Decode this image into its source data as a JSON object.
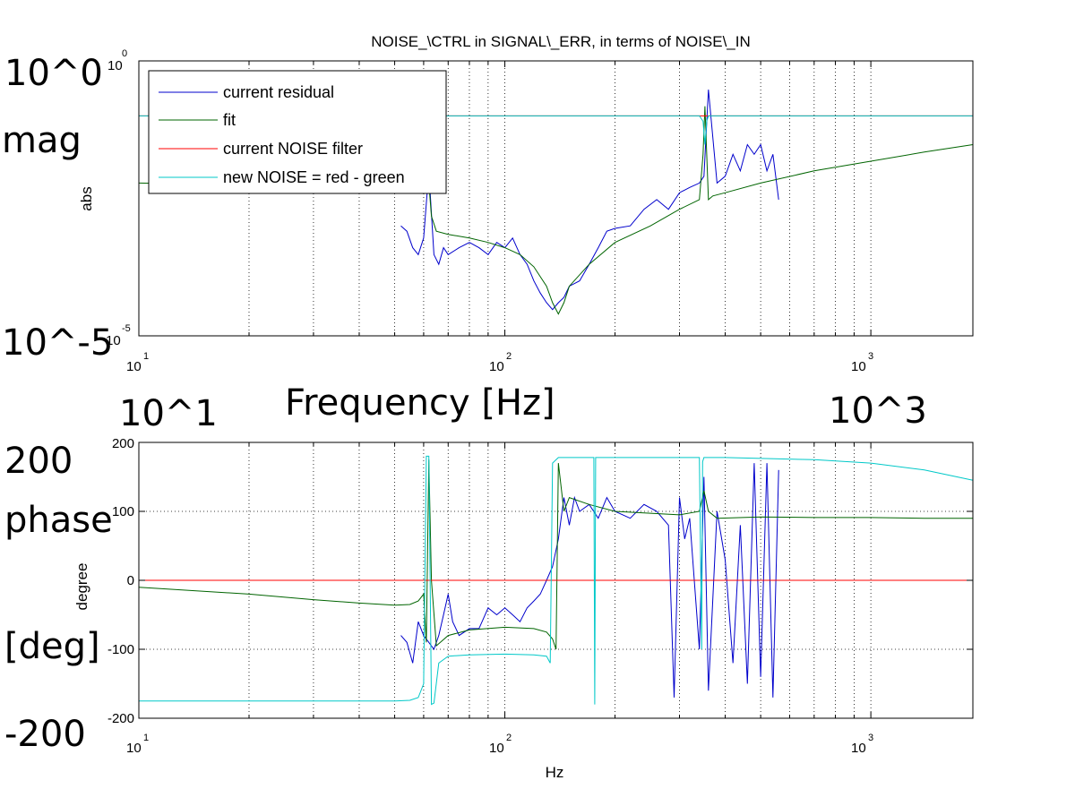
{
  "chart_data": [
    {
      "type": "line",
      "title": "NOISE_\\CTRL in SIGNAL\\_ERR, in terms of NOISE\\_IN",
      "xlabel": "",
      "ylabel": "abs",
      "xscale": "log",
      "yscale": "log",
      "xlim": [
        10,
        1900
      ],
      "ylim": [
        1e-05,
        1
      ],
      "xticks": [
        {
          "base": "10",
          "exp": "1"
        },
        {
          "base": "10",
          "exp": "2"
        },
        {
          "base": "10",
          "exp": "3"
        }
      ],
      "yticks": [
        {
          "base": "10",
          "exp": "0"
        },
        {
          "base": "10",
          "exp": "-5"
        }
      ],
      "grid": true,
      "legend_position": "top-left",
      "series": [
        {
          "name": "current residual",
          "color": "#0000cc",
          "x": [
            52,
            54,
            56,
            58,
            60,
            62,
            64,
            66,
            68,
            70,
            75,
            80,
            85,
            90,
            95,
            100,
            105,
            110,
            115,
            120,
            125,
            130,
            135,
            140,
            145,
            150,
            160,
            170,
            180,
            190,
            200,
            220,
            240,
            260,
            280,
            300,
            320,
            340,
            350,
            360,
            380,
            400,
            420,
            440,
            460,
            480,
            500,
            520,
            540,
            560
          ],
          "y": [
            0.001,
            0.0008,
            0.0004,
            0.0003,
            0.0006,
            0.01,
            0.0003,
            0.0002,
            0.0004,
            0.0003,
            0.0004,
            0.0005,
            0.0004,
            0.0003,
            0.0005,
            0.0004,
            0.0006,
            0.0003,
            0.0002,
            0.0001,
            6e-05,
            4e-05,
            3e-05,
            4e-05,
            5e-05,
            8e-05,
            0.0001,
            0.0002,
            0.0004,
            0.0008,
            0.0009,
            0.001,
            0.002,
            0.003,
            0.002,
            0.004,
            0.005,
            0.006,
            0.008,
            0.3,
            0.006,
            0.008,
            0.02,
            0.01,
            0.03,
            0.02,
            0.03,
            0.01,
            0.02,
            0.003
          ]
        },
        {
          "name": "fit",
          "color": "#006400",
          "x": [
            10,
            20,
            30,
            40,
            50,
            55,
            58,
            60,
            61,
            62,
            63,
            65,
            70,
            80,
            90,
            100,
            110,
            120,
            130,
            135,
            140,
            145,
            150,
            170,
            200,
            250,
            300,
            340,
            348,
            352,
            356,
            360,
            370,
            400,
            500,
            700,
            1000,
            1400,
            1900
          ],
          "y": [
            0.006,
            0.0055,
            0.005,
            0.0046,
            0.0043,
            0.005,
            0.008,
            0.02,
            0.05,
            0.006,
            0.0015,
            0.0008,
            0.0007,
            0.0006,
            0.0005,
            0.0004,
            0.0003,
            0.00018,
            8e-05,
            4e-05,
            2.5e-05,
            4e-05,
            8e-05,
            0.0002,
            0.0005,
            0.001,
            0.002,
            0.003,
            0.02,
            0.15,
            0.02,
            0.003,
            0.0035,
            0.004,
            0.006,
            0.01,
            0.015,
            0.022,
            0.03
          ]
        },
        {
          "name": "current NOISE filter",
          "color": "#ff0000",
          "x": [
            10,
            1900
          ],
          "y": [
            0.1,
            0.1
          ]
        },
        {
          "name": "new NOISE = red - green",
          "color": "#00c8c8",
          "x": [
            10,
            55,
            58,
            60,
            61,
            62,
            63,
            65,
            70,
            300,
            340,
            348,
            352,
            356,
            360,
            370,
            1900
          ],
          "y": [
            0.1,
            0.1,
            0.098,
            0.09,
            0.05,
            0.095,
            0.1,
            0.1,
            0.1,
            0.1,
            0.1,
            0.08,
            0.03,
            0.08,
            0.1,
            0.1,
            0.1
          ]
        }
      ]
    },
    {
      "type": "line",
      "title": "",
      "xlabel": "Hz",
      "ylabel": "degree",
      "xscale": "log",
      "xlim": [
        10,
        1900
      ],
      "ylim": [
        -200,
        200
      ],
      "xticks": [
        {
          "base": "10",
          "exp": "1"
        },
        {
          "base": "10",
          "exp": "2"
        },
        {
          "base": "10",
          "exp": "3"
        }
      ],
      "yticks": [
        "200",
        "100",
        "0",
        "-100",
        "-200"
      ],
      "grid": true,
      "series": [
        {
          "name": "current residual",
          "color": "#0000cc",
          "x": [
            52,
            54,
            56,
            58,
            60,
            62,
            64,
            66,
            68,
            70,
            72,
            75,
            80,
            85,
            90,
            95,
            100,
            105,
            110,
            115,
            120,
            125,
            130,
            135,
            140,
            145,
            150,
            155,
            160,
            170,
            180,
            190,
            200,
            220,
            240,
            260,
            280,
            290,
            300,
            310,
            320,
            340,
            350,
            360,
            380,
            400,
            420,
            440,
            460,
            480,
            500,
            520,
            540,
            560
          ],
          "y": [
            -80,
            -90,
            -120,
            -60,
            -80,
            -90,
            -100,
            -80,
            -50,
            -20,
            -60,
            -80,
            -70,
            -70,
            -40,
            -50,
            -40,
            -50,
            -60,
            -40,
            -30,
            -20,
            0,
            20,
            60,
            120,
            80,
            120,
            100,
            110,
            90,
            120,
            100,
            90,
            110,
            100,
            80,
            -170,
            120,
            60,
            90,
            -100,
            150,
            -160,
            100,
            30,
            -120,
            80,
            -150,
            170,
            -140,
            170,
            -170,
            160
          ]
        },
        {
          "name": "fit",
          "color": "#006400",
          "x": [
            10,
            20,
            30,
            40,
            50,
            55,
            58,
            60,
            61,
            62,
            63,
            65,
            70,
            80,
            100,
            120,
            130,
            135,
            138,
            140,
            145,
            150,
            170,
            200,
            300,
            340,
            350,
            360,
            380,
            500,
            700,
            1000,
            1400,
            1900
          ],
          "y": [
            -10,
            -20,
            -28,
            -33,
            -36,
            -35,
            -30,
            -20,
            -90,
            175,
            0,
            -95,
            -80,
            -72,
            -68,
            -70,
            -75,
            -85,
            -100,
            170,
            100,
            120,
            110,
            100,
            95,
            100,
            130,
            100,
            90,
            92,
            91,
            91,
            90,
            90
          ]
        },
        {
          "name": "current NOISE filter",
          "color": "#ff0000",
          "x": [
            10,
            1900
          ],
          "y": [
            0,
            0
          ]
        },
        {
          "name": "new NOISE = red - green",
          "color": "#00c8c8",
          "x": [
            10,
            50,
            55,
            58,
            60,
            61,
            62,
            63,
            64,
            66,
            70,
            80,
            100,
            120,
            130,
            133,
            135,
            140,
            150,
            170,
            175,
            176,
            177,
            180,
            200,
            300,
            340,
            345,
            347,
            350,
            360,
            400,
            700,
            1000,
            1400,
            1900
          ],
          "y": [
            -175,
            -175,
            -174,
            -170,
            -150,
            180,
            180,
            -180,
            -178,
            -120,
            -110,
            -108,
            -107,
            -108,
            -110,
            -120,
            170,
            178,
            178,
            178,
            178,
            -180,
            178,
            178,
            178,
            178,
            178,
            -100,
            172,
            178,
            178,
            178,
            175,
            170,
            160,
            145
          ]
        }
      ]
    }
  ],
  "overlay": {
    "top_max": "10^0",
    "top_label": "mag",
    "top_min": "10^-5",
    "xaxis_label": "Frequency [Hz]",
    "x_left": "10^1",
    "x_right": "10^3",
    "bottom_max": "200",
    "bottom_label_1": "phase",
    "bottom_label_2": "[deg]",
    "bottom_min": "-200"
  }
}
